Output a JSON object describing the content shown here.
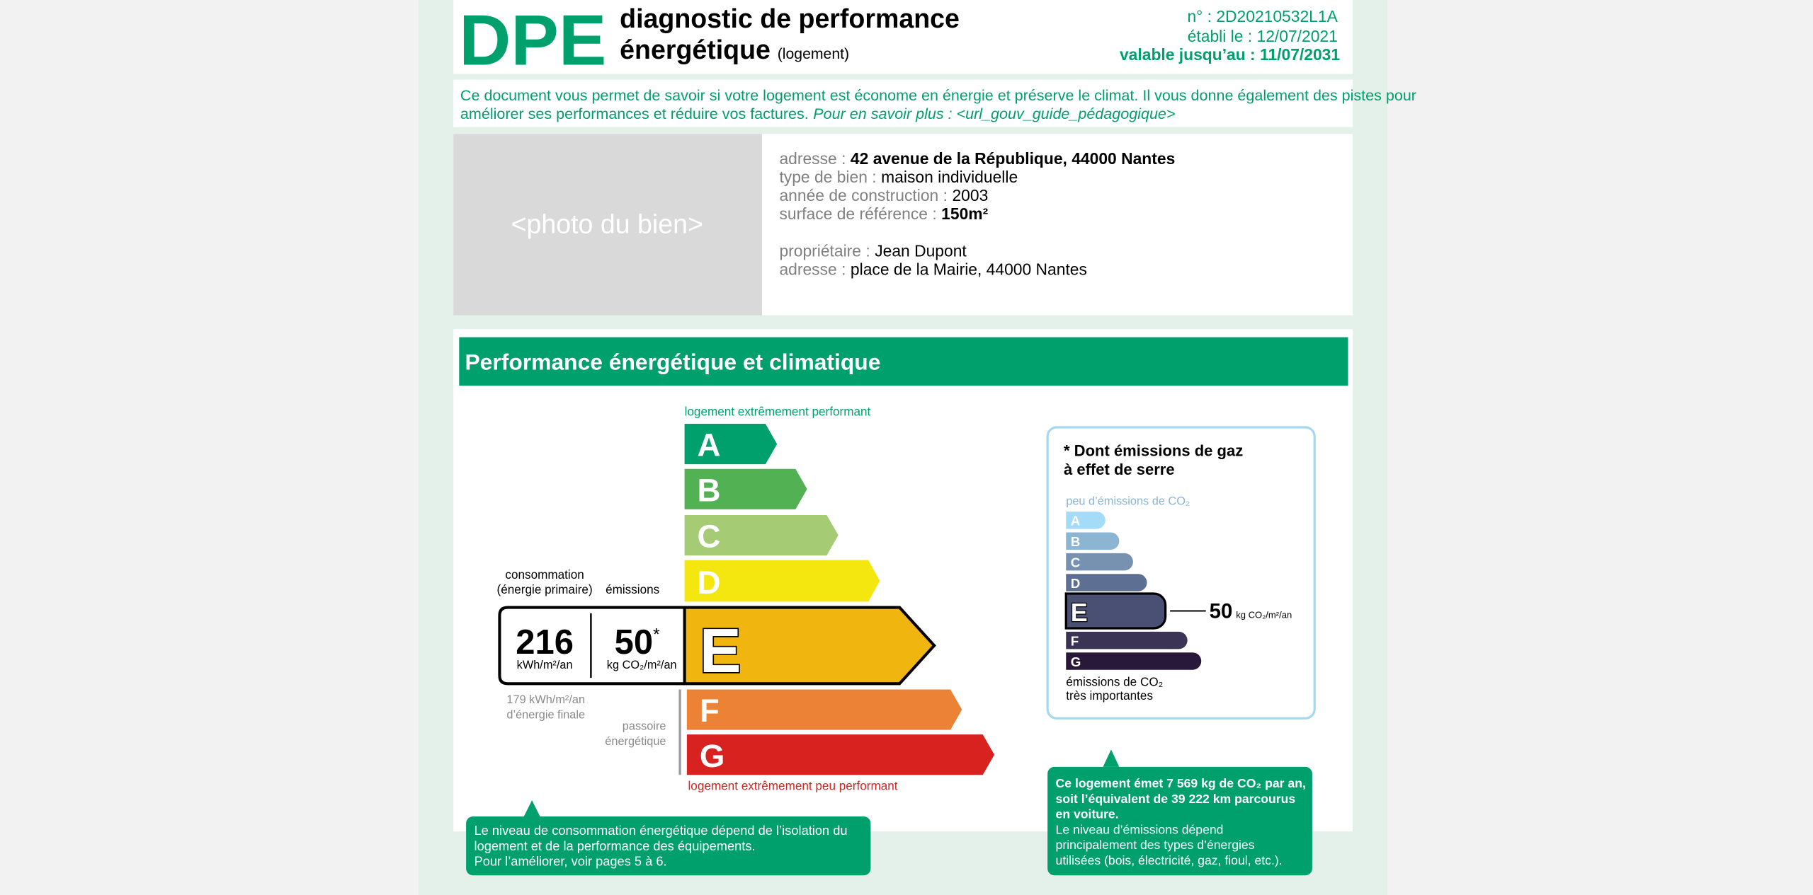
{
  "header": {
    "logo": "DPE",
    "title_line_1": "diagnostic de performance",
    "title_line_2": "énergétique",
    "title_note": "(logement)",
    "number": "n° : 2D20210532L1A",
    "established": "établi le : 12/07/2021",
    "valid_until": "valable jusqu’au : 11/07/2031"
  },
  "intro": {
    "line_1": "Ce document vous permet de savoir si votre logement est économe en énergie et préserve le climat. Il vous donne également des pistes pour",
    "line_2": "améliorer ses performances et réduire vos factures.",
    "more": "Pour en savoir plus : <url_gouv_guide_pédagogique>"
  },
  "property": {
    "photo": "<photo du bien>",
    "details": [
      {
        "label": "adresse :",
        "value": "42 avenue de la République, 44000 Nantes"
      },
      {
        "label": "type de bien :",
        "value": "maison individuelle"
      },
      {
        "label": "année de construction :",
        "value": "2003"
      },
      {
        "label": "surface de référence :",
        "value": "150m²"
      }
    ],
    "owner": [
      {
        "label": "propriétaire :",
        "value": "Jean Dupont"
      },
      {
        "label": "adresse :",
        "value": "place de la Mairie, 44000 Nantes"
      }
    ]
  },
  "performance": {
    "title": "Performance énergétique et climatique",
    "top_label": "logement extrêmement performant",
    "bottom_label": "logement extrêmement peu performant",
    "classes": [
      "A",
      "B",
      "C",
      "D",
      "E",
      "F",
      "G"
    ],
    "consumption_label": [
      "consommation",
      "(énergie primaire)"
    ],
    "emissions_label": "émissions",
    "consumption_value": "216",
    "consumption_unit": "kWh/m²/an",
    "emissions_value": "50",
    "emissions_mark": "*",
    "emissions_unit": "kg CO₂/m²/an",
    "final_energy": [
      "179 kWh/m²/an",
      "d’énergie finale"
    ],
    "sieve_label": [
      "passoire",
      "énergétique"
    ],
    "note": [
      "Le niveau de consommation énergétique dépend de l’isolation du",
      "logement et de la performance des équipements.",
      "Pour l’améliorer, voir pages 5 à 6."
    ]
  },
  "ghg": {
    "title": [
      "* Dont émissions de gaz",
      "à effet de serre"
    ],
    "top_label": "peu d’émissions de CO₂",
    "classes": [
      "A",
      "B",
      "C",
      "D",
      "E",
      "F",
      "G"
    ],
    "value": "50",
    "unit": "kg CO₂/m²/an",
    "bottom_label": [
      "émissions de CO₂",
      "très importantes"
    ],
    "note_bold": [
      "Ce logement émet 7 569 kg de CO₂ par an,",
      "soit l’équivalent de 39 222 km parcourus",
      "en voiture."
    ],
    "note": [
      "Le niveau d’émissions dépend",
      "principalement des types d’énergies",
      "utilisées (bois, électricité, gaz, fioul, etc.)."
    ]
  }
}
